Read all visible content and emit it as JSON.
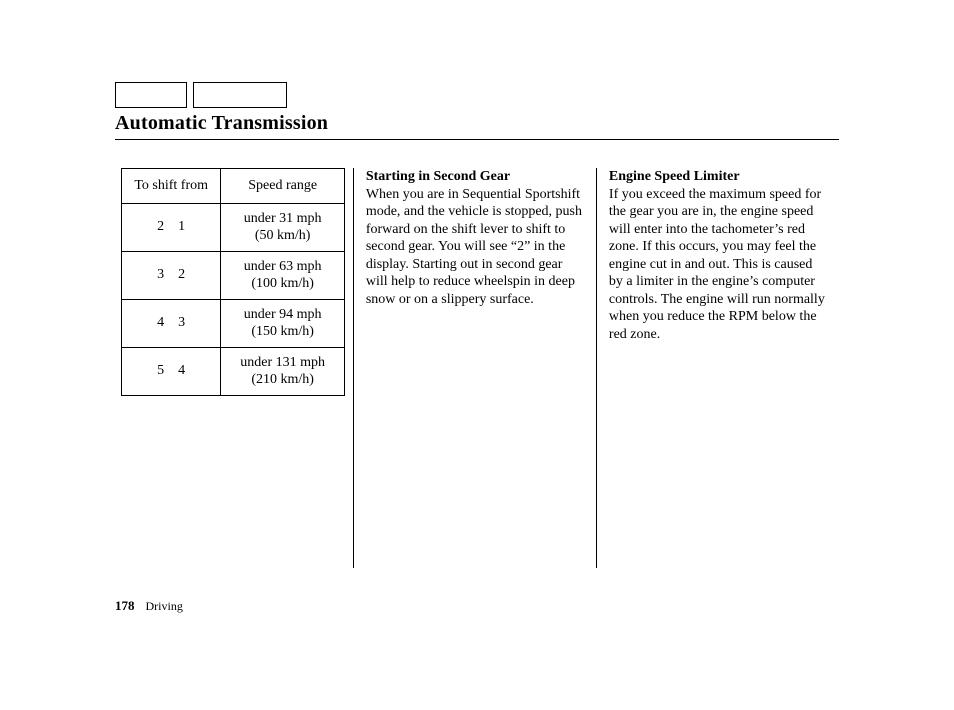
{
  "title": "Automatic Transmission",
  "table": {
    "headers": {
      "col1": "To shift from",
      "col2": "Speed range"
    },
    "rows": [
      {
        "from": "2",
        "to": "1",
        "speed": "under 31 mph",
        "speed_sub": "(50 km/h)"
      },
      {
        "from": "3",
        "to": "2",
        "speed": "under 63 mph",
        "speed_sub": "(100 km/h)"
      },
      {
        "from": "4",
        "to": "3",
        "speed": "under 94 mph",
        "speed_sub": "(150 km/h)"
      },
      {
        "from": "5",
        "to": "4",
        "speed": "under 131 mph",
        "speed_sub": "(210 km/h)"
      }
    ]
  },
  "col2": {
    "heading": "Starting in Second Gear",
    "body": "When you are in Sequential Sportshift mode, and the vehicle is stopped, push forward on the shift lever to shift to second gear. You will see “2” in the display. Starting out in second gear will help to reduce wheelspin in deep snow or on a slippery surface."
  },
  "col3": {
    "heading": "Engine Speed Limiter",
    "body": "If you exceed the maximum speed for the gear you are in, the engine speed will enter into the tachometer’s red zone. If this occurs, you may feel the engine cut in and out. This is caused by a limiter in the engine’s computer controls. The engine will run normally when you reduce the RPM below the red zone."
  },
  "footer": {
    "page": "178",
    "section": "Driving"
  },
  "colors": {
    "text": "#000000",
    "background": "#ffffff",
    "border": "#000000"
  }
}
